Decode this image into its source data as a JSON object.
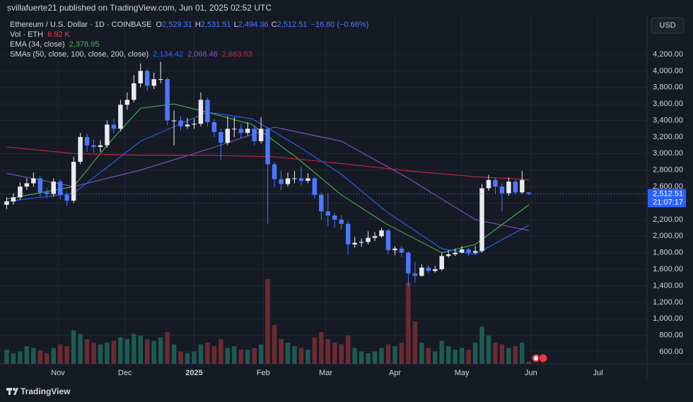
{
  "header": {
    "published": "svillafuerte21 published on TradingView.com, Jun 01, 2025 02:52 UTC",
    "brand": "TradingView",
    "currency": "USD"
  },
  "chart_data": {
    "type": "candlestick",
    "title": "Ethereum / U.S. Dollar · 1D · COINBASE",
    "last_labels": {
      "open_prefix": "O",
      "open": "2,529.31",
      "high_prefix": "H",
      "high": "2,531.51",
      "low_prefix": "L",
      "low": "2,494.36",
      "close_prefix": "C",
      "close": "2,512.51",
      "change": "−16.80 (−0.66%)"
    },
    "volume_name": "Vol · ETH",
    "volume_label": "6.92 K",
    "price_label": "2,512.51",
    "countdown": "21:07:17",
    "up_color": "#e8eaef",
    "down_color": "#4a78ff",
    "volume_up_color": "#1d5b52",
    "volume_down_color": "#6b2b31",
    "grid": true,
    "x": [
      0,
      3,
      6,
      9,
      12,
      15,
      18,
      21,
      24,
      27,
      30,
      33,
      36,
      39,
      42,
      45,
      48,
      51,
      54,
      57,
      60,
      63,
      66,
      69,
      72,
      75,
      78,
      81,
      84,
      87,
      90,
      93,
      96,
      99,
      102,
      105,
      108,
      111,
      114,
      117,
      120,
      123,
      126,
      129,
      132,
      135,
      138,
      141,
      144,
      147,
      150,
      153,
      156,
      159,
      162,
      165,
      168,
      171,
      174,
      177,
      180,
      183,
      186,
      189,
      192,
      195,
      198,
      201,
      204,
      207,
      210,
      213,
      216,
      219,
      222,
      225,
      228,
      231,
      234
    ],
    "open": [
      2380,
      2420,
      2470,
      2600,
      2640,
      2700,
      2530,
      2510,
      2660,
      2500,
      2430,
      2900,
      3200,
      3100,
      3080,
      3100,
      3350,
      3300,
      3590,
      3650,
      3850,
      4000,
      3820,
      3900,
      3900,
      3400,
      3400,
      3330,
      3350,
      3360,
      3650,
      3380,
      3260,
      3130,
      3300,
      3300,
      3250,
      3300,
      3150,
      3300,
      2870,
      2690,
      2630,
      2700,
      2700,
      2670,
      2700,
      2500,
      2300,
      2250,
      2200,
      2150,
      1900,
      1920,
      1930,
      1980,
      2000,
      2070,
      1830,
      1850,
      1800,
      1550,
      1520,
      1620,
      1580,
      1600,
      1760,
      1780,
      1800,
      1840,
      1800,
      1820,
      2580,
      2680,
      2600,
      2520,
      2660,
      2530,
      2529.31
    ],
    "high": [
      2470,
      2520,
      2650,
      2700,
      2770,
      2730,
      2580,
      2700,
      2690,
      2540,
      2960,
      3250,
      3240,
      3170,
      3160,
      3400,
      3420,
      3650,
      3740,
      3950,
      4090,
      4020,
      3980,
      4110,
      3920,
      3520,
      3450,
      3430,
      3420,
      3740,
      3680,
      3420,
      3300,
      3450,
      3440,
      3360,
      3380,
      3340,
      3440,
      3320,
      2900,
      2790,
      2770,
      2790,
      2840,
      2760,
      2720,
      2530,
      2520,
      2280,
      2250,
      2190,
      1990,
      1970,
      2060,
      2050,
      2100,
      2090,
      1880,
      1880,
      1820,
      1690,
      1660,
      1650,
      1640,
      1800,
      1830,
      1850,
      1880,
      1860,
      1880,
      2630,
      2740,
      2710,
      2640,
      2710,
      2680,
      2790,
      2531.51
    ],
    "low": [
      2330,
      2380,
      2440,
      2560,
      2600,
      2480,
      2460,
      2480,
      2450,
      2370,
      2400,
      2870,
      3020,
      3010,
      3020,
      3070,
      3250,
      3270,
      3530,
      3620,
      3800,
      3760,
      3780,
      3850,
      3340,
      3100,
      3280,
      3300,
      3300,
      3330,
      3330,
      3200,
      2920,
      3100,
      3200,
      3180,
      3220,
      3100,
      3120,
      2150,
      2600,
      2560,
      2600,
      2640,
      2620,
      2640,
      2460,
      2200,
      2120,
      2100,
      2080,
      1780,
      1860,
      1870,
      1900,
      1940,
      1980,
      1780,
      1770,
      1750,
      1390,
      1440,
      1510,
      1550,
      1560,
      1580,
      1740,
      1760,
      1790,
      1760,
      1780,
      1800,
      2550,
      2510,
      2300,
      2490,
      2500,
      2510,
      2494.36
    ],
    "close": [
      2420,
      2470,
      2600,
      2640,
      2700,
      2530,
      2510,
      2660,
      2500,
      2430,
      2900,
      3200,
      3100,
      3080,
      3100,
      3350,
      3300,
      3590,
      3650,
      3850,
      4000,
      3820,
      3900,
      3900,
      3400,
      3400,
      3330,
      3350,
      3360,
      3650,
      3380,
      3260,
      3130,
      3300,
      3300,
      3250,
      3300,
      3150,
      3300,
      2870,
      2690,
      2630,
      2700,
      2700,
      2670,
      2700,
      2500,
      2300,
      2250,
      2200,
      2150,
      1900,
      1920,
      1930,
      1980,
      2000,
      2070,
      1830,
      1850,
      1800,
      1550,
      1520,
      1620,
      1580,
      1600,
      1760,
      1780,
      1800,
      1840,
      1800,
      1820,
      2580,
      2680,
      2600,
      2520,
      2660,
      2530,
      2680,
      2512.51
    ],
    "volume": [
      40,
      30,
      35,
      50,
      45,
      38,
      30,
      45,
      55,
      50,
      95,
      85,
      70,
      60,
      55,
      60,
      65,
      75,
      70,
      85,
      80,
      70,
      65,
      75,
      90,
      55,
      35,
      30,
      35,
      55,
      60,
      50,
      70,
      45,
      50,
      40,
      40,
      45,
      55,
      240,
      110,
      70,
      60,
      50,
      45,
      40,
      75,
      90,
      70,
      60,
      55,
      80,
      45,
      35,
      30,
      35,
      45,
      55,
      50,
      60,
      230,
      120,
      60,
      45,
      35,
      65,
      50,
      40,
      45,
      40,
      60,
      105,
      80,
      60,
      55,
      45,
      50,
      60,
      6.92
    ],
    "vlim": [
      0,
      250
    ],
    "indicators": [
      {
        "name": "EMA (34, close)",
        "lines": [
          {
            "color": "#4caf50",
            "x": [
              0,
              30,
              45,
              60,
              75,
              90,
              110,
              130,
              150,
              170,
              195,
              210,
              234
            ],
            "values": [
              2450,
              2600,
              3100,
              3550,
              3600,
              3500,
              3350,
              2950,
              2500,
              2150,
              1800,
              1900,
              2378.95
            ],
            "value_label": "2,378.95"
          }
        ]
      },
      {
        "name": "SMAs (50, close, 100, close, 200, close)",
        "lines": [
          {
            "color": "#2962ff",
            "x": [
              0,
              30,
              60,
              90,
              110,
              130,
              150,
              170,
              195,
              210,
              234
            ],
            "values": [
              2420,
              2520,
              3150,
              3500,
              3420,
              3100,
              2750,
              2300,
              1850,
              1780,
              2134.42
            ],
            "value_label": "2,134.42"
          },
          {
            "color": "#7e57c2",
            "x": [
              0,
              30,
              60,
              90,
              120,
              150,
              180,
              210,
              234
            ],
            "values": [
              2760,
              2600,
              2800,
              3050,
              3320,
              3150,
              2700,
              2200,
              2068.46
            ],
            "value_label": "2,068.46"
          },
          {
            "color": "#c2283a",
            "x": [
              0,
              30,
              60,
              90,
              120,
              150,
              180,
              210,
              234
            ],
            "values": [
              3080,
              3000,
              2980,
              2980,
              2960,
              2880,
              2790,
              2720,
              2683.53
            ],
            "value_label": "2,683.53"
          }
        ]
      }
    ],
    "xlim": [
      -3,
      287
    ],
    "xticks": [
      {
        "value": 23,
        "label": "Nov"
      },
      {
        "value": 53,
        "label": "Dec"
      },
      {
        "value": 84,
        "label": "2025"
      },
      {
        "value": 115,
        "label": "Feb"
      },
      {
        "value": 143,
        "label": "Mar"
      },
      {
        "value": 174,
        "label": "Apr"
      },
      {
        "value": 204,
        "label": "May"
      },
      {
        "value": 235,
        "label": "Jun"
      },
      {
        "value": 265,
        "label": "Jul"
      }
    ],
    "ylim": [
      455,
      4670
    ],
    "yticks": [
      {
        "value": 600,
        "label": "600.00"
      },
      {
        "value": 800,
        "label": "800.00"
      },
      {
        "value": 1000,
        "label": "1,000.00"
      },
      {
        "value": 1200,
        "label": "1,200.00"
      },
      {
        "value": 1400,
        "label": "1,400.00"
      },
      {
        "value": 1600,
        "label": "1,600.00"
      },
      {
        "value": 1800,
        "label": "1,800.00"
      },
      {
        "value": 2000,
        "label": "2,000.00"
      },
      {
        "value": 2200,
        "label": "2,200.00"
      },
      {
        "value": 2400,
        "label": "2,400.00"
      },
      {
        "value": 2600,
        "label": "2,600.00"
      },
      {
        "value": 2800,
        "label": "2,800.00"
      },
      {
        "value": 3000,
        "label": "3,000.00"
      },
      {
        "value": 3200,
        "label": "3,200.00"
      },
      {
        "value": 3400,
        "label": "3,400.00"
      },
      {
        "value": 3600,
        "label": "3,600.00"
      },
      {
        "value": 3800,
        "label": "3,800.00"
      },
      {
        "value": 4000,
        "label": "4,000.00"
      },
      {
        "value": 4200,
        "label": "4,200.00"
      }
    ]
  }
}
